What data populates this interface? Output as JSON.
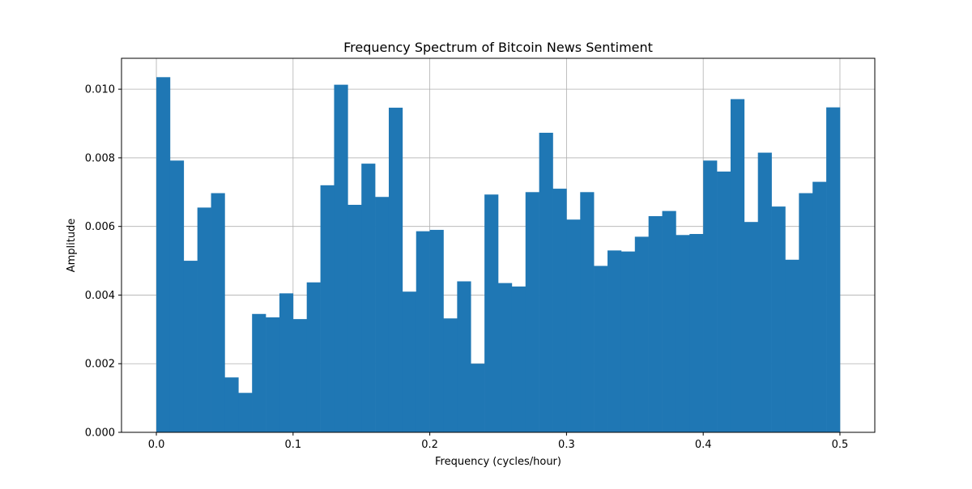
{
  "chart_data": {
    "type": "bar",
    "title": "Frequency Spectrum of Bitcoin News Sentiment",
    "xlabel": "Frequency (cycles/hour)",
    "ylabel": "Amplitude",
    "xlim": [
      -0.0255,
      0.5255
    ],
    "ylim": [
      0.0,
      0.0109
    ],
    "grid": true,
    "bar_width": 0.01,
    "x": [
      0.0,
      0.01,
      0.02,
      0.03,
      0.04,
      0.05,
      0.06,
      0.07,
      0.08,
      0.09,
      0.1,
      0.11,
      0.12,
      0.13,
      0.14,
      0.15,
      0.16,
      0.17,
      0.18,
      0.19,
      0.2,
      0.21,
      0.22,
      0.23,
      0.24,
      0.25,
      0.26,
      0.27,
      0.28,
      0.29,
      0.3,
      0.31,
      0.32,
      0.33,
      0.34,
      0.35,
      0.36,
      0.37,
      0.38,
      0.39,
      0.4,
      0.41,
      0.42,
      0.43,
      0.44,
      0.45,
      0.46,
      0.47,
      0.48,
      0.49
    ],
    "values": [
      0.01035,
      0.00792,
      0.005,
      0.00655,
      0.00697,
      0.0016,
      0.00115,
      0.00345,
      0.00335,
      0.00405,
      0.0033,
      0.00437,
      0.0072,
      0.01013,
      0.00663,
      0.00783,
      0.00686,
      0.00946,
      0.0041,
      0.00586,
      0.0059,
      0.00332,
      0.0044,
      0.002,
      0.00693,
      0.00435,
      0.00425,
      0.007,
      0.00873,
      0.0071,
      0.0062,
      0.007,
      0.00485,
      0.0053,
      0.00527,
      0.0057,
      0.0063,
      0.00645,
      0.00575,
      0.00578,
      0.00792,
      0.0076,
      0.00971,
      0.00613,
      0.00815,
      0.00658,
      0.00503,
      0.00697,
      0.0073,
      0.00947
    ],
    "bar_color": "#1f77b4",
    "xticks": [
      {
        "value": 0.0,
        "label": "0.0"
      },
      {
        "value": 0.1,
        "label": "0.1"
      },
      {
        "value": 0.2,
        "label": "0.2"
      },
      {
        "value": 0.3,
        "label": "0.3"
      },
      {
        "value": 0.4,
        "label": "0.4"
      },
      {
        "value": 0.5,
        "label": "0.5"
      }
    ],
    "yticks": [
      {
        "value": 0.0,
        "label": "0.000"
      },
      {
        "value": 0.002,
        "label": "0.002"
      },
      {
        "value": 0.004,
        "label": "0.004"
      },
      {
        "value": 0.006,
        "label": "0.006"
      },
      {
        "value": 0.008,
        "label": "0.008"
      },
      {
        "value": 0.01,
        "label": "0.010"
      }
    ]
  }
}
